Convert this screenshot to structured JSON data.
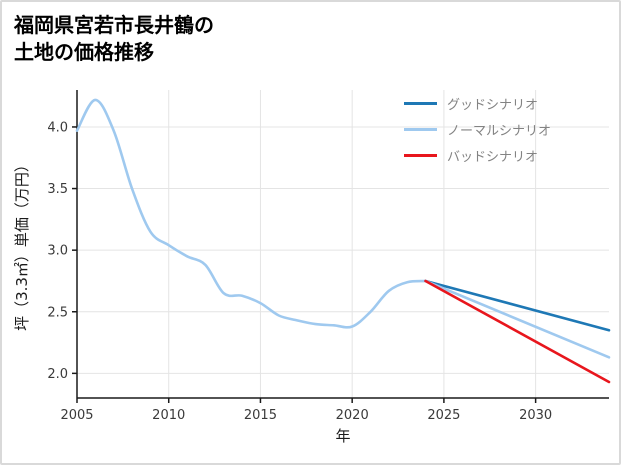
{
  "page": {
    "title_line1": "福岡県宮若市長井鶴の",
    "title_line2": "土地の価格推移"
  },
  "chart_data": {
    "type": "line",
    "title": "福岡県宮若市長井鶴の土地の価格推移",
    "xlabel": "年",
    "ylabel": "坪（3.3㎡）単価（万円）",
    "xlim": [
      2005,
      2034
    ],
    "ylim": [
      1.8,
      4.3
    ],
    "x_ticks": [
      2005,
      2010,
      2015,
      2020,
      2025,
      2030
    ],
    "y_ticks": [
      2.0,
      2.5,
      3.0,
      3.5,
      4.0
    ],
    "grid": true,
    "legend_position": "top-right",
    "colors": {
      "history": "#9fc9ef",
      "good": "#1e78b5",
      "normal": "#9fc9ef",
      "bad": "#e8161d",
      "gridline": "#e4e4e4",
      "axis": "#1a1a1a"
    },
    "series": [
      {
        "name": "",
        "role": "history",
        "color": "#9fc9ef",
        "x": [
          2005,
          2006,
          2007,
          2008,
          2009,
          2010,
          2011,
          2012,
          2013,
          2014,
          2015,
          2016,
          2017,
          2018,
          2019,
          2020,
          2021,
          2022,
          2023,
          2024
        ],
        "values": [
          3.97,
          4.22,
          3.97,
          3.5,
          3.15,
          3.04,
          2.95,
          2.88,
          2.65,
          2.63,
          2.57,
          2.47,
          2.43,
          2.4,
          2.39,
          2.38,
          2.5,
          2.67,
          2.74,
          2.75
        ]
      },
      {
        "name": "グッドシナリオ",
        "role": "forecast-good",
        "color": "#1e78b5",
        "x": [
          2024,
          2034
        ],
        "values": [
          2.75,
          2.35
        ]
      },
      {
        "name": "ノーマルシナリオ",
        "role": "forecast-normal",
        "color": "#9fc9ef",
        "x": [
          2024,
          2034
        ],
        "values": [
          2.75,
          2.13
        ]
      },
      {
        "name": "バッドシナリオ",
        "role": "forecast-bad",
        "color": "#e8161d",
        "x": [
          2024,
          2034
        ],
        "values": [
          2.75,
          1.93
        ]
      }
    ],
    "legend": [
      {
        "label": "グッドシナリオ",
        "color": "#1e78b5"
      },
      {
        "label": "ノーマルシナリオ",
        "color": "#9fc9ef"
      },
      {
        "label": "バッドシナリオ",
        "color": "#e8161d"
      }
    ]
  }
}
